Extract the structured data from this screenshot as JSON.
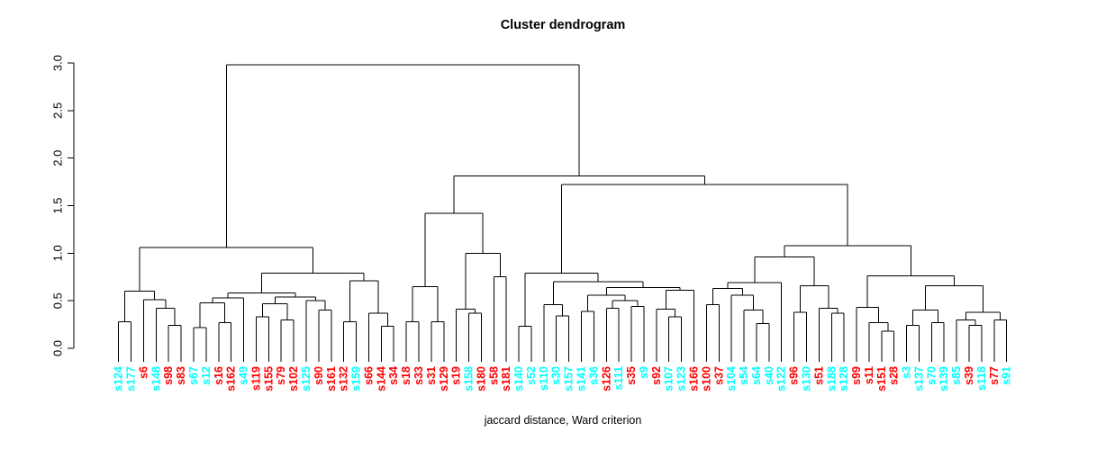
{
  "title": "Cluster dendrogram",
  "xlabel": "jaccard distance, Ward criterion",
  "chart_data": {
    "type": "dendrogram",
    "title": "Cluster dendrogram",
    "xlabel": "jaccard distance, Ward criterion",
    "ylabel": "",
    "ylim": [
      0,
      3
    ],
    "yticks": [
      "0.0",
      "0.5",
      "1.0",
      "1.5",
      "2.0",
      "2.5",
      "3.0"
    ],
    "grid": false,
    "legend": "none",
    "cluster_colors": {
      "red_cluster": "#FF0000",
      "cyan_cluster": "#00FFFF"
    },
    "leaves": [
      {
        "label": "s124",
        "color": "#00FFFF"
      },
      {
        "label": "s177",
        "color": "#00FFFF"
      },
      {
        "label": "s6",
        "color": "#FF0000"
      },
      {
        "label": "s148",
        "color": "#00FFFF"
      },
      {
        "label": "s98",
        "color": "#FF0000"
      },
      {
        "label": "s83",
        "color": "#FF0000"
      },
      {
        "label": "s67",
        "color": "#00FFFF"
      },
      {
        "label": "s12",
        "color": "#00FFFF"
      },
      {
        "label": "s16",
        "color": "#FF0000"
      },
      {
        "label": "s162",
        "color": "#FF0000"
      },
      {
        "label": "s49",
        "color": "#00FFFF"
      },
      {
        "label": "s119",
        "color": "#FF0000"
      },
      {
        "label": "s155",
        "color": "#FF0000"
      },
      {
        "label": "s79",
        "color": "#FF0000"
      },
      {
        "label": "s102",
        "color": "#FF0000"
      },
      {
        "label": "s125",
        "color": "#00FFFF"
      },
      {
        "label": "s90",
        "color": "#FF0000"
      },
      {
        "label": "s161",
        "color": "#FF0000"
      },
      {
        "label": "s132",
        "color": "#FF0000"
      },
      {
        "label": "s159",
        "color": "#00FFFF"
      },
      {
        "label": "s66",
        "color": "#FF0000"
      },
      {
        "label": "s144",
        "color": "#FF0000"
      },
      {
        "label": "s34",
        "color": "#FF0000"
      },
      {
        "label": "s18",
        "color": "#FF0000"
      },
      {
        "label": "s33",
        "color": "#FF0000"
      },
      {
        "label": "s31",
        "color": "#FF0000"
      },
      {
        "label": "s129",
        "color": "#FF0000"
      },
      {
        "label": "s19",
        "color": "#FF0000"
      },
      {
        "label": "s158",
        "color": "#00FFFF"
      },
      {
        "label": "s180",
        "color": "#FF0000"
      },
      {
        "label": "s58",
        "color": "#FF0000"
      },
      {
        "label": "s181",
        "color": "#FF0000"
      },
      {
        "label": "s140",
        "color": "#00FFFF"
      },
      {
        "label": "s52",
        "color": "#00FFFF"
      },
      {
        "label": "s110",
        "color": "#00FFFF"
      },
      {
        "label": "s30",
        "color": "#00FFFF"
      },
      {
        "label": "s157",
        "color": "#00FFFF"
      },
      {
        "label": "s141",
        "color": "#00FFFF"
      },
      {
        "label": "s36",
        "color": "#00FFFF"
      },
      {
        "label": "s126",
        "color": "#FF0000"
      },
      {
        "label": "s111",
        "color": "#00FFFF"
      },
      {
        "label": "s35",
        "color": "#FF0000"
      },
      {
        "label": "s9",
        "color": "#00FFFF"
      },
      {
        "label": "s92",
        "color": "#FF0000"
      },
      {
        "label": "s107",
        "color": "#00FFFF"
      },
      {
        "label": "s123",
        "color": "#00FFFF"
      },
      {
        "label": "s166",
        "color": "#FF0000"
      },
      {
        "label": "s100",
        "color": "#FF0000"
      },
      {
        "label": "s37",
        "color": "#FF0000"
      },
      {
        "label": "s104",
        "color": "#00FFFF"
      },
      {
        "label": "s54",
        "color": "#00FFFF"
      },
      {
        "label": "s64",
        "color": "#00FFFF"
      },
      {
        "label": "s40",
        "color": "#00FFFF"
      },
      {
        "label": "s122",
        "color": "#00FFFF"
      },
      {
        "label": "s96",
        "color": "#FF0000"
      },
      {
        "label": "s130",
        "color": "#00FFFF"
      },
      {
        "label": "s51",
        "color": "#FF0000"
      },
      {
        "label": "s188",
        "color": "#00FFFF"
      },
      {
        "label": "s128",
        "color": "#00FFFF"
      },
      {
        "label": "s99",
        "color": "#FF0000"
      },
      {
        "label": "s11",
        "color": "#FF0000"
      },
      {
        "label": "s151",
        "color": "#FF0000"
      },
      {
        "label": "s28",
        "color": "#FF0000"
      },
      {
        "label": "s3",
        "color": "#00FFFF"
      },
      {
        "label": "s137",
        "color": "#00FFFF"
      },
      {
        "label": "s70",
        "color": "#00FFFF"
      },
      {
        "label": "s139",
        "color": "#00FFFF"
      },
      {
        "label": "s85",
        "color": "#00FFFF"
      },
      {
        "label": "s39",
        "color": "#FF0000"
      },
      {
        "label": "s118",
        "color": "#00FFFF"
      },
      {
        "label": "s77",
        "color": "#FF0000"
      },
      {
        "label": "s91",
        "color": "#00FFFF"
      }
    ],
    "tree": [
      2.98,
      [
        1.06,
        [
          0.6,
          [
            0.28,
            "s124",
            "s177"
          ],
          [
            0.51,
            "s6",
            [
              0.42,
              "s148",
              [
                0.24,
                "s98",
                "s83"
              ]
            ]
          ]
        ],
        [
          0.79,
          [
            0.58,
            [
              0.53,
              [
                0.48,
                [
                  0.22,
                  "s67",
                  "s12"
                ],
                [
                  0.27,
                  "s16",
                  "s162"
                ]
              ],
              "s49"
            ],
            [
              0.54,
              [
                0.47,
                [
                  0.33,
                  "s119",
                  "s155"
                ],
                [
                  0.3,
                  "s79",
                  "s102"
                ]
              ],
              [
                0.5,
                "s125",
                [
                  0.4,
                  "s90",
                  "s161"
                ]
              ]
            ]
          ],
          [
            0.71,
            [
              0.28,
              "s132",
              "s159"
            ],
            [
              0.37,
              "s66",
              [
                0.23,
                "s144",
                "s34"
              ]
            ]
          ]
        ]
      ],
      [
        1.81,
        [
          1.42,
          [
            0.65,
            [
              0.28,
              "s18",
              "s33"
            ],
            [
              0.28,
              "s31",
              "s129"
            ]
          ],
          [
            1.0,
            [
              0.41,
              "s19",
              [
                0.37,
                "s158",
                "s180"
              ]
            ],
            [
              0.75,
              "s58",
              "s181"
            ]
          ]
        ],
        [
          1.72,
          [
            0.79,
            [
              0.23,
              "s140",
              "s52"
            ],
            [
              0.7,
              [
                0.46,
                "s110",
                [
                  0.34,
                  "s30",
                  "s157"
                ]
              ],
              [
                0.64,
                [
                  0.56,
                  [
                    0.39,
                    "s141",
                    "s36"
                  ],
                  [
                    0.5,
                    [
                      0.42,
                      "s126",
                      "s111"
                    ],
                    [
                      0.44,
                      "s35",
                      "s9"
                    ]
                  ]
                ],
                [
                  0.61,
                  [
                    0.41,
                    "s92",
                    [
                      0.33,
                      "s107",
                      "s123"
                    ]
                  ],
                  "s166"
                ]
              ]
            ]
          ],
          [
            1.08,
            [
              0.96,
              [
                0.69,
                [
                  0.63,
                  [
                    0.46,
                    "s100",
                    "s37"
                  ],
                  [
                    0.56,
                    "s104",
                    [
                      0.4,
                      "s54",
                      [
                        0.26,
                        "s64",
                        "s40"
                      ]
                    ]
                  ]
                ],
                "s122"
              ],
              [
                0.66,
                [
                  0.38,
                  "s96",
                  "s130"
                ],
                [
                  0.42,
                  "s51",
                  [
                    0.37,
                    "s188",
                    "s128"
                  ]
                ]
              ]
            ],
            [
              0.76,
              [
                0.43,
                "s99",
                [
                  0.27,
                  "s11",
                  [
                    0.18,
                    "s151",
                    "s28"
                  ]
                ]
              ],
              [
                0.66,
                [
                  0.4,
                  [
                    0.24,
                    "s3",
                    "s137"
                  ],
                  [
                    0.27,
                    "s70",
                    "s139"
                  ]
                ],
                [
                  0.38,
                  [
                    0.3,
                    "s85",
                    [
                      0.24,
                      "s39",
                      "s118"
                    ]
                  ],
                  [
                    0.3,
                    "s77",
                    "s91"
                  ]
                ]
              ]
            ]
          ]
        ]
      ]
    ]
  }
}
